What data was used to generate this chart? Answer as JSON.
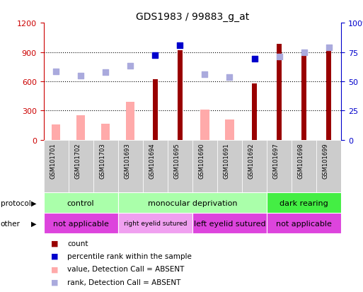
{
  "title": "GDS1983 / 99883_g_at",
  "samples": [
    "GSM101701",
    "GSM101702",
    "GSM101703",
    "GSM101693",
    "GSM101694",
    "GSM101695",
    "GSM101690",
    "GSM101691",
    "GSM101692",
    "GSM101697",
    "GSM101698",
    "GSM101699"
  ],
  "count_values": [
    null,
    null,
    null,
    null,
    620,
    920,
    null,
    null,
    580,
    980,
    880,
    940
  ],
  "absent_value": [
    160,
    250,
    165,
    390,
    null,
    null,
    310,
    210,
    null,
    null,
    null,
    null
  ],
  "percentile_rank_left": [
    null,
    null,
    null,
    null,
    870,
    970,
    null,
    null,
    830,
    null,
    null,
    null
  ],
  "absent_rank_left": [
    700,
    660,
    695,
    760,
    null,
    null,
    670,
    645,
    null,
    850,
    895,
    950
  ],
  "ylim_left": [
    0,
    1200
  ],
  "ylim_right": [
    0,
    100
  ],
  "yticks_left": [
    0,
    300,
    600,
    900,
    1200
  ],
  "yticks_right": [
    0,
    25,
    50,
    75,
    100
  ],
  "bar_color_dark": "#990000",
  "bar_color_absent": "#ffaaaa",
  "dot_color_dark": "#0000cc",
  "dot_color_absent": "#aaaadd",
  "bg_color": "#ffffff",
  "left_axis_color": "#cc0000",
  "right_axis_color": "#0000cc",
  "proto_groups": [
    {
      "label": "control",
      "start": 0,
      "end": 3,
      "color": "#aaffaa"
    },
    {
      "label": "monocular deprivation",
      "start": 3,
      "end": 9,
      "color": "#aaffaa"
    },
    {
      "label": "dark rearing",
      "start": 9,
      "end": 12,
      "color": "#44ee44"
    }
  ],
  "other_groups": [
    {
      "label": "not applicable",
      "start": 0,
      "end": 3,
      "color": "#dd44dd"
    },
    {
      "label": "right eyelid sutured",
      "start": 3,
      "end": 6,
      "color": "#f0a0f0"
    },
    {
      "label": "left eyelid sutured",
      "start": 6,
      "end": 9,
      "color": "#dd44dd"
    },
    {
      "label": "not applicable",
      "start": 9,
      "end": 12,
      "color": "#dd44dd"
    }
  ],
  "legend_items": [
    {
      "color": "#990000",
      "label": "count"
    },
    {
      "color": "#0000cc",
      "label": "percentile rank within the sample"
    },
    {
      "color": "#ffaaaa",
      "label": "value, Detection Call = ABSENT"
    },
    {
      "color": "#aaaadd",
      "label": "rank, Detection Call = ABSENT"
    }
  ]
}
